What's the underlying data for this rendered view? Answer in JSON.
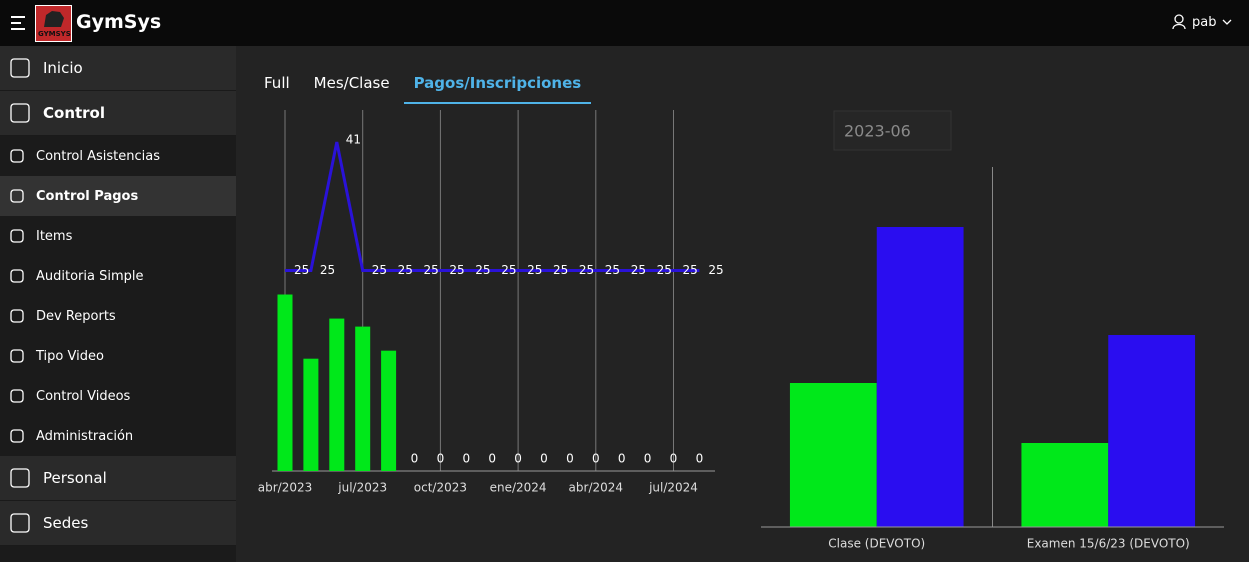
{
  "header": {
    "logo_text": "GYMSYS",
    "app_name": "GymSys",
    "user": "pab"
  },
  "sidebar": {
    "items": [
      {
        "label": "Inicio",
        "level": 0
      },
      {
        "label": "Control",
        "level": 0
      },
      {
        "label": "Control Asistencias",
        "level": 1
      },
      {
        "label": "Control Pagos",
        "level": 1
      },
      {
        "label": "Items",
        "level": 1
      },
      {
        "label": "Auditoria Simple",
        "level": 1
      },
      {
        "label": "Dev Reports",
        "level": 1
      },
      {
        "label": "Tipo Video",
        "level": 1
      },
      {
        "label": "Control Videos",
        "level": 1
      },
      {
        "label": "Administración",
        "level": 1
      },
      {
        "label": "Personal",
        "level": 0
      },
      {
        "label": "Sedes",
        "level": 0
      }
    ],
    "active": 3
  },
  "tabs": {
    "items": [
      "Full",
      "Mes/Clase",
      "Pagos/Inscripciones"
    ],
    "active": 2
  },
  "date_filter": "2023-06",
  "chart_data": [
    {
      "type": "bar",
      "categories": [
        "abr/2023",
        null,
        null,
        "jul/2023",
        null,
        null,
        "oct/2023",
        null,
        null,
        "ene/2024",
        null,
        null,
        "abr/2024",
        null,
        null,
        "jul/2024",
        null
      ],
      "ylim": [
        0,
        45
      ],
      "grid": "x",
      "series": [
        {
          "type": "bar",
          "color": "#00e81a",
          "values": [
            22,
            14,
            19,
            18,
            15,
            0,
            0,
            0,
            0,
            0,
            0,
            0,
            0,
            0,
            0,
            0,
            0
          ],
          "value_labels": [
            null,
            null,
            null,
            null,
            null,
            "0",
            "0",
            "0",
            "0",
            "0",
            "0",
            "0",
            "0",
            "0",
            "0",
            "0",
            "0"
          ]
        },
        {
          "type": "line",
          "color": "#2a12d8",
          "values": [
            25,
            25,
            41,
            25,
            25,
            25,
            25,
            25,
            25,
            25,
            25,
            25,
            25,
            25,
            25,
            25,
            25
          ]
        }
      ]
    },
    {
      "type": "bar",
      "categories": [
        "Clase (DEVOTO)",
        "Examen 15/6/23 (DEVOTO)"
      ],
      "ylim": [
        0,
        30
      ],
      "series": [
        {
          "color": "#00e81a",
          "values": [
            12,
            7
          ]
        },
        {
          "color": "#2a0df0",
          "values": [
            25,
            16
          ]
        }
      ]
    }
  ]
}
